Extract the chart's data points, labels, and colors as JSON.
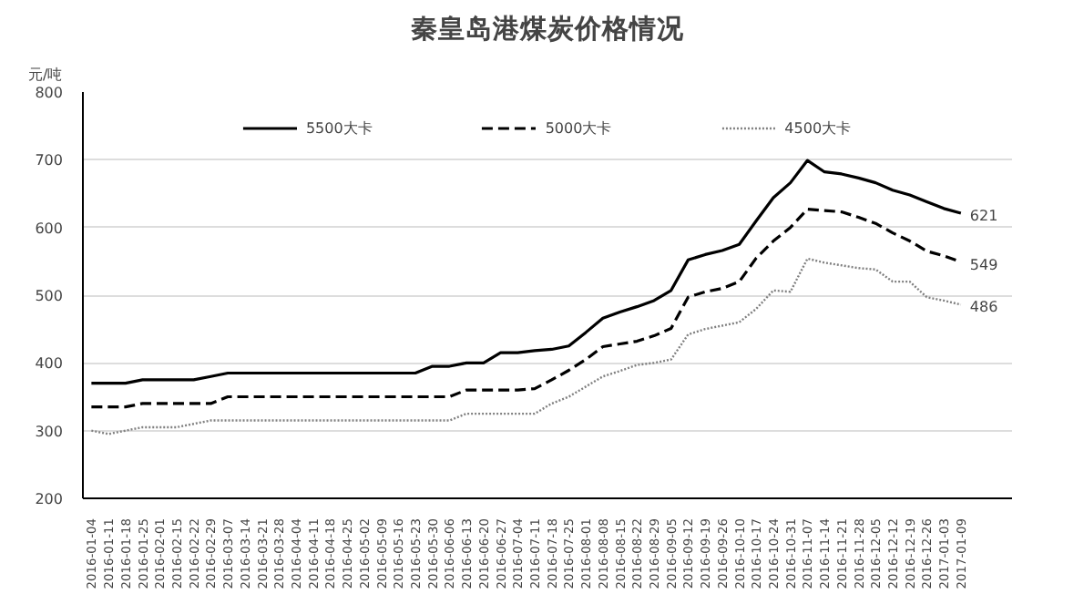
{
  "chart_data": {
    "type": "line",
    "title": "秦皇岛港煤炭价格情况",
    "ylabel": "元/吨",
    "categories": [
      "2016-01-04",
      "2016-01-11",
      "2016-01-18",
      "2016-01-25",
      "2016-02-01",
      "2016-02-15",
      "2016-02-22",
      "2016-02-29",
      "2016-03-07",
      "2016-03-14",
      "2016-03-21",
      "2016-03-28",
      "2016-04-04",
      "2016-04-11",
      "2016-04-18",
      "2016-04-25",
      "2016-05-02",
      "2016-05-09",
      "2016-05-16",
      "2016-05-23",
      "2016-05-30",
      "2016-06-06",
      "2016-06-13",
      "2016-06-20",
      "2016-06-27",
      "2016-07-04",
      "2016-07-11",
      "2016-07-18",
      "2016-07-25",
      "2016-08-01",
      "2016-08-08",
      "2016-08-15",
      "2016-08-22",
      "2016-08-29",
      "2016-09-05",
      "2016-09-12",
      "2016-09-19",
      "2016-09-26",
      "2016-10-10",
      "2016-10-17",
      "2016-10-24",
      "2016-10-31",
      "2016-11-07",
      "2016-11-14",
      "2016-11-21",
      "2016-11-28",
      "2016-12-05",
      "2016-12-12",
      "2016-12-19",
      "2016-12-26",
      "2017-01-03",
      "2017-01-09"
    ],
    "series": [
      {
        "name": "5500大卡",
        "color": "#000000",
        "line_style": "solid",
        "values": [
          370,
          370,
          370,
          375,
          375,
          375,
          375,
          380,
          385,
          385,
          385,
          385,
          385,
          385,
          385,
          385,
          385,
          385,
          385,
          385,
          395,
          395,
          400,
          400,
          415,
          415,
          418,
          420,
          425,
          445,
          466,
          475,
          483,
          492,
          507,
          552,
          560,
          566,
          575,
          610,
          644,
          666,
          699,
          682,
          679,
          673,
          666,
          655,
          648,
          638,
          628,
          621
        ],
        "value_labels": [
          null,
          null,
          null,
          null,
          null,
          null,
          null,
          null,
          null,
          null,
          null,
          null,
          null,
          null,
          null,
          null,
          null,
          null,
          null,
          null,
          null,
          null,
          null,
          null,
          null,
          null,
          null,
          null,
          null,
          null,
          null,
          null,
          null,
          null,
          null,
          null,
          null,
          null,
          null,
          null,
          null,
          null,
          null,
          null,
          null,
          null,
          null,
          null,
          null,
          null,
          null,
          "621"
        ]
      },
      {
        "name": "5000大卡",
        "color": "#000000",
        "line_style": "dashed",
        "values": [
          335,
          335,
          335,
          340,
          340,
          340,
          340,
          340,
          350,
          350,
          350,
          350,
          350,
          350,
          350,
          350,
          350,
          350,
          350,
          350,
          350,
          350,
          360,
          360,
          360,
          360,
          362,
          375,
          389,
          405,
          424,
          428,
          432,
          440,
          451,
          497,
          505,
          510,
          520,
          555,
          580,
          600,
          627,
          625,
          623,
          615,
          606,
          592,
          580,
          565,
          558,
          549
        ],
        "value_labels": [
          null,
          null,
          null,
          null,
          null,
          null,
          null,
          null,
          null,
          null,
          null,
          null,
          null,
          null,
          null,
          null,
          null,
          null,
          null,
          null,
          null,
          null,
          null,
          null,
          null,
          null,
          null,
          null,
          null,
          null,
          null,
          null,
          null,
          null,
          null,
          null,
          null,
          null,
          null,
          null,
          null,
          null,
          null,
          null,
          null,
          null,
          null,
          null,
          null,
          null,
          null,
          "549"
        ]
      },
      {
        "name": "4500大卡",
        "color": "#808080",
        "line_style": "dotted",
        "values": [
          300,
          295,
          300,
          305,
          305,
          305,
          310,
          315,
          315,
          315,
          315,
          315,
          315,
          315,
          315,
          315,
          315,
          315,
          315,
          315,
          315,
          315,
          325,
          325,
          325,
          325,
          325,
          340,
          350,
          365,
          380,
          388,
          397,
          400,
          405,
          442,
          450,
          455,
          460,
          480,
          507,
          505,
          554,
          548,
          544,
          540,
          538,
          520,
          520,
          497,
          492,
          486
        ],
        "value_labels": [
          null,
          null,
          null,
          null,
          null,
          null,
          null,
          null,
          null,
          null,
          null,
          null,
          null,
          null,
          null,
          null,
          null,
          null,
          null,
          null,
          null,
          null,
          null,
          null,
          null,
          null,
          null,
          null,
          null,
          null,
          null,
          null,
          null,
          null,
          null,
          null,
          null,
          null,
          null,
          null,
          null,
          null,
          null,
          null,
          null,
          null,
          null,
          null,
          null,
          null,
          null,
          "486"
        ]
      }
    ],
    "ylim": [
      200,
      800
    ],
    "yticks": [
      200,
      300,
      400,
      500,
      600,
      700,
      800
    ],
    "grid": "y",
    "legend": "top",
    "marker": "none"
  }
}
